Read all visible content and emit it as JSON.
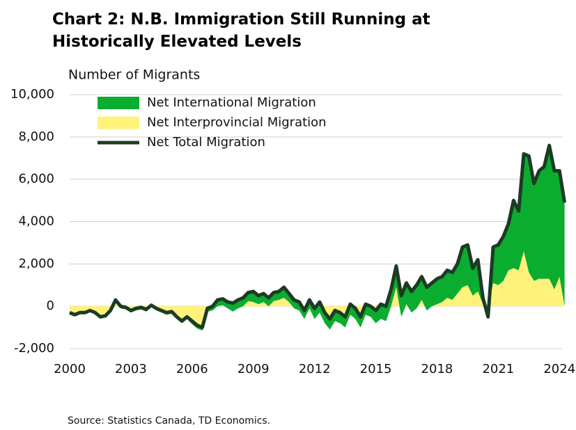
{
  "chart_data": {
    "type": "area",
    "title": "Chart 2: N.B. Immigration Still Running at Historically Elevated Levels",
    "ylabel": "Number of Migrants",
    "source": "Source: Statistics Canada, TD Economics.",
    "x": [
      2000,
      2000.25,
      2000.5,
      2000.75,
      2001,
      2001.25,
      2001.5,
      2001.75,
      2002,
      2002.25,
      2002.5,
      2002.75,
      2003,
      2003.25,
      2003.5,
      2003.75,
      2004,
      2004.25,
      2004.5,
      2004.75,
      2005,
      2005.25,
      2005.5,
      2005.75,
      2006,
      2006.25,
      2006.5,
      2006.75,
      2007,
      2007.25,
      2007.5,
      2007.75,
      2008,
      2008.25,
      2008.5,
      2008.75,
      2009,
      2009.25,
      2009.5,
      2009.75,
      2010,
      2010.25,
      2010.5,
      2010.75,
      2011,
      2011.25,
      2011.5,
      2011.75,
      2012,
      2012.25,
      2012.5,
      2012.75,
      2013,
      2013.25,
      2013.5,
      2013.75,
      2014,
      2014.25,
      2014.5,
      2014.75,
      2015,
      2015.25,
      2015.5,
      2015.75,
      2016,
      2016.25,
      2016.5,
      2016.75,
      2017,
      2017.25,
      2017.5,
      2017.75,
      2018,
      2018.25,
      2018.5,
      2018.75,
      2019,
      2019.25,
      2019.5,
      2019.75,
      2020,
      2020.25,
      2020.5,
      2020.75,
      2021,
      2021.25,
      2021.5,
      2021.75,
      2022,
      2022.25,
      2022.5,
      2022.75,
      2023,
      2023.25,
      2023.5,
      2023.75,
      2024,
      2024.25
    ],
    "series": [
      {
        "name": "Net International Migration",
        "type": "area",
        "color": "#0aad2f",
        "values": [
          50,
          50,
          50,
          50,
          50,
          50,
          50,
          50,
          100,
          100,
          100,
          100,
          100,
          100,
          100,
          100,
          100,
          100,
          100,
          100,
          100,
          100,
          100,
          100,
          150,
          150,
          150,
          150,
          200,
          300,
          300,
          300,
          400,
          400,
          400,
          400,
          500,
          400,
          400,
          400,
          400,
          400,
          500,
          400,
          400,
          400,
          400,
          400,
          500,
          500,
          500,
          500,
          500,
          500,
          500,
          500,
          500,
          500,
          500,
          500,
          600,
          700,
          700,
          800,
          1000,
          1000,
          1000,
          1000,
          1100,
          1100,
          1100,
          1100,
          1200,
          1200,
          1300,
          1300,
          1400,
          1900,
          1900,
          1300,
          1500,
          300,
          -300,
          1700,
          1900,
          2100,
          2200,
          3200,
          2800,
          4600,
          5500,
          4600,
          5100,
          5300,
          6300,
          5600,
          5000,
          4900
        ]
      },
      {
        "name": "Net Interprovincial Migration",
        "type": "area",
        "color": "#fff27a",
        "values": [
          -350,
          -450,
          -350,
          -350,
          -250,
          -350,
          -550,
          -500,
          -300,
          200,
          -100,
          -150,
          -300,
          -200,
          -150,
          -250,
          -50,
          -200,
          -300,
          -400,
          -350,
          -600,
          -800,
          -600,
          -850,
          -1050,
          -1150,
          -250,
          -200,
          0,
          50,
          -100,
          -250,
          -100,
          0,
          250,
          200,
          100,
          200,
          0,
          250,
          300,
          400,
          200,
          -100,
          -200,
          -600,
          -100,
          -600,
          -300,
          -800,
          -1100,
          -700,
          -800,
          -1000,
          -400,
          -600,
          -1000,
          -400,
          -500,
          -800,
          -600,
          -700,
          0,
          900,
          -500,
          100,
          -300,
          -100,
          300,
          -200,
          0,
          100,
          200,
          400,
          300,
          600,
          900,
          1000,
          500,
          700,
          100,
          -200,
          1100,
          1000,
          1200,
          1700,
          1800,
          1700,
          2600,
          1600,
          1200,
          1300,
          1300,
          1300,
          800,
          1400,
          0
        ]
      },
      {
        "name": "Net Total Migration",
        "type": "line",
        "color": "#1d3b24",
        "values": [
          -300,
          -400,
          -300,
          -300,
          -200,
          -300,
          -500,
          -450,
          -200,
          300,
          0,
          -50,
          -200,
          -100,
          -50,
          -150,
          50,
          -100,
          -200,
          -300,
          -250,
          -500,
          -700,
          -500,
          -700,
          -900,
          -1000,
          -100,
          0,
          300,
          350,
          200,
          150,
          300,
          400,
          650,
          700,
          500,
          600,
          400,
          650,
          700,
          900,
          600,
          300,
          200,
          -200,
          300,
          -100,
          200,
          -300,
          -600,
          -200,
          -300,
          -500,
          100,
          -100,
          -500,
          100,
          0,
          -200,
          100,
          0,
          800,
          1900,
          500,
          1100,
          700,
          1000,
          1400,
          900,
          1100,
          1300,
          1400,
          1700,
          1600,
          2000,
          2800,
          2900,
          1800,
          2200,
          400,
          -500,
          2800,
          2900,
          3300,
          3900,
          5000,
          4500,
          7200,
          7100,
          5800,
          6400,
          6600,
          7600,
          6400,
          6400,
          4900
        ]
      }
    ],
    "xlim": [
      2000,
      2024.4
    ],
    "xticks": [
      2000,
      2003,
      2006,
      2009,
      2012,
      2015,
      2018,
      2021,
      2024
    ],
    "ylim": [
      -2000,
      10000
    ],
    "yticks": [
      {
        "value": -2000,
        "label": "-2,000"
      },
      0,
      {
        "value": 2000,
        "label": "2,000"
      },
      {
        "value": 4000,
        "label": "4,000"
      },
      {
        "value": 6000,
        "label": "6,000"
      },
      {
        "value": 8000,
        "label": "8,000"
      },
      {
        "value": 10000,
        "label": "10,000"
      }
    ],
    "grid": true,
    "legend": "top-left"
  }
}
